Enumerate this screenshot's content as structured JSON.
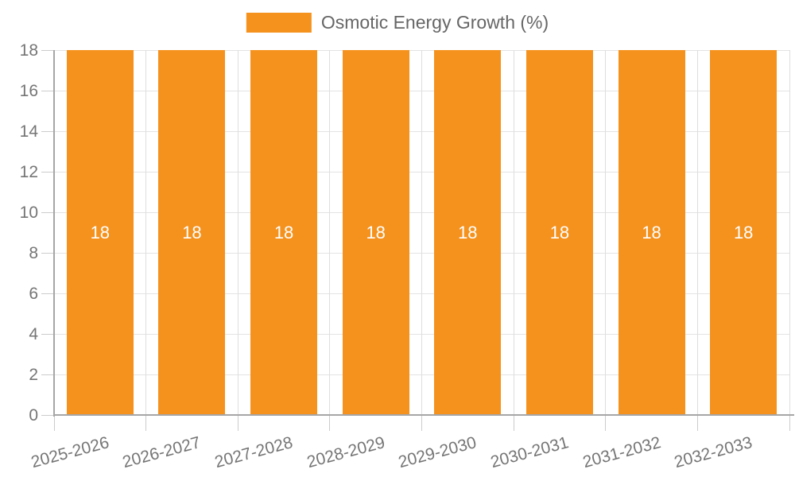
{
  "legend": {
    "label": "Osmotic Energy Growth (%)"
  },
  "colors": {
    "bar": "#f5921e",
    "grid_h": "#e3e3e3",
    "grid_v": "#dedede",
    "axis": "#a6a6a6",
    "tick": "#cccccc",
    "axis_text": "#757575",
    "legend_text": "#666666",
    "value_text": "#ffffff"
  },
  "chart_data": {
    "type": "bar",
    "title": "",
    "xlabel": "",
    "ylabel": "",
    "categories": [
      "2025-2026",
      "2026-2027",
      "2027-2028",
      "2028-2029",
      "2029-2030",
      "2030-2031",
      "2031-2032",
      "2032-2033"
    ],
    "series": [
      {
        "name": "Osmotic Energy Growth (%)",
        "color": "#f5921e",
        "values": [
          18,
          18,
          18,
          18,
          18,
          18,
          18,
          18
        ]
      }
    ],
    "bar_labels": [
      "18",
      "18",
      "18",
      "18",
      "18",
      "18",
      "18",
      "18"
    ],
    "ylim": [
      0,
      18
    ],
    "yticks": [
      0,
      2,
      4,
      6,
      8,
      10,
      12,
      14,
      16,
      18
    ],
    "grid": true,
    "legend_position": "top-center"
  }
}
